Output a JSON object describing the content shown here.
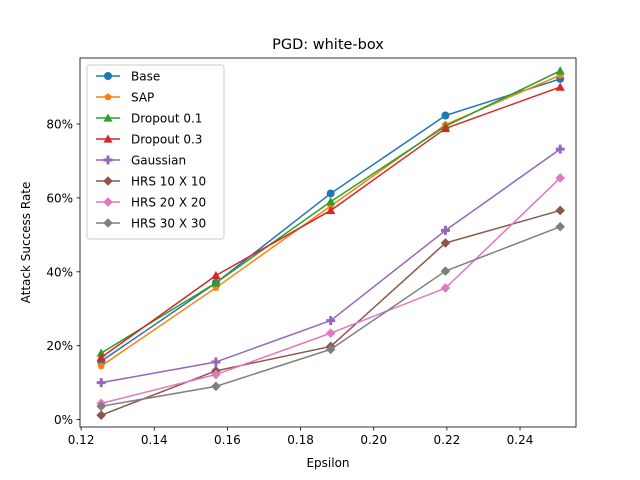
{
  "chart_data": {
    "type": "line",
    "title": "PGD: white-box",
    "xlabel": "Epsilon",
    "ylabel": "Attack Success Rate",
    "xlim": [
      0.1197,
      0.2553
    ],
    "ylim": [
      -0.02,
      0.9786
    ],
    "x": [
      0.12549,
      0.15686,
      0.18824,
      0.21961,
      0.25098
    ],
    "xticks": [
      0.12,
      0.14,
      0.16,
      0.18,
      0.2,
      0.22,
      0.24
    ],
    "xtick_labels": [
      "0.12",
      "0.14",
      "0.16",
      "0.18",
      "0.20",
      "0.22",
      "0.24"
    ],
    "yticks": [
      0.0,
      0.2,
      0.4,
      0.6,
      0.8
    ],
    "ytick_labels": [
      "0%",
      "20%",
      "40%",
      "60%",
      "80%"
    ],
    "legend_position": "top-left",
    "grid": false,
    "series": [
      {
        "name": "Base",
        "color": "#1f77b4",
        "marker": "circle",
        "values": [
          0.158,
          0.37,
          0.612,
          0.823,
          0.922
        ]
      },
      {
        "name": "SAP",
        "color": "#ff7f0e",
        "marker": "pentagon",
        "values": [
          0.145,
          0.357,
          0.578,
          0.798,
          0.932
        ]
      },
      {
        "name": "Dropout 0.1",
        "color": "#2ca02c",
        "marker": "triangle",
        "values": [
          0.18,
          0.37,
          0.59,
          0.794,
          0.944
        ]
      },
      {
        "name": "Dropout 0.3",
        "color": "#d62728",
        "marker": "triangle",
        "values": [
          0.168,
          0.39,
          0.566,
          0.788,
          0.9
        ]
      },
      {
        "name": "Gaussian",
        "color": "#9467bd",
        "marker": "plus",
        "values": [
          0.1,
          0.156,
          0.268,
          0.512,
          0.732
        ]
      },
      {
        "name": "HRS 10 X 10",
        "color": "#8c564b",
        "marker": "diamond",
        "values": [
          0.012,
          0.132,
          0.198,
          0.478,
          0.566
        ]
      },
      {
        "name": "HRS 20 X 20",
        "color": "#e377c2",
        "marker": "diamond",
        "values": [
          0.044,
          0.122,
          0.234,
          0.356,
          0.654
        ]
      },
      {
        "name": "HRS 30 X 30",
        "color": "#7f7f7f",
        "marker": "diamond",
        "values": [
          0.036,
          0.09,
          0.19,
          0.402,
          0.522
        ]
      }
    ]
  }
}
